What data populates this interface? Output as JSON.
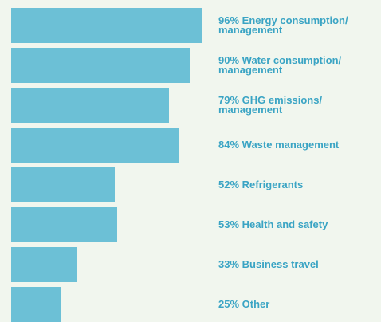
{
  "chart_data": {
    "type": "bar",
    "orientation": "horizontal",
    "categories": [
      "Energy consumption/ management",
      "Water consumption/ management",
      "GHG emissions/ management",
      "Waste management",
      "Refrigerants",
      "Health and safety",
      "Business travel",
      "Other"
    ],
    "values": [
      96,
      90,
      79,
      84,
      52,
      53,
      33,
      25
    ],
    "value_labels": [
      "96%",
      "90%",
      "79%",
      "84%",
      "52%",
      "53%",
      "33%",
      "25%"
    ],
    "color": "#6cc0d6",
    "xlim": [
      0,
      100
    ]
  }
}
